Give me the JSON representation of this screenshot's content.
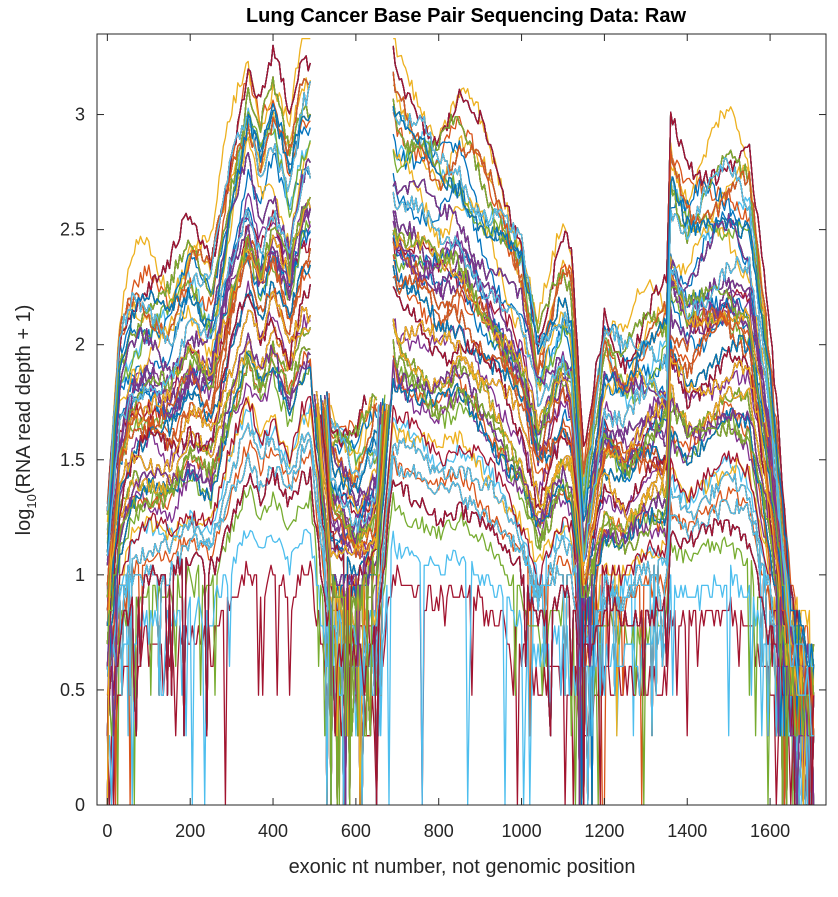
{
  "chart_data": {
    "type": "line",
    "title": "Lung Cancer Base Pair Sequencing Data: Raw",
    "xlabel": "exonic nt number, not genomic position",
    "ylabel": {
      "prefix": "log",
      "subscript": "10",
      "suffix": "(RNA read depth + 1)"
    },
    "xlim": [
      -25,
      1735
    ],
    "ylim": [
      0,
      3.35
    ],
    "x_ticks": [
      0,
      200,
      400,
      600,
      800,
      1000,
      1200,
      1400,
      1600
    ],
    "x_tick_labels": [
      "0",
      "200",
      "400",
      "600",
      "800",
      "1000",
      "1200",
      "1400",
      "1600"
    ],
    "y_ticks": [
      0,
      0.5,
      1,
      1.5,
      2,
      2.5,
      3
    ],
    "y_tick_labels": [
      "0",
      "0.5",
      "1",
      "1.5",
      "2",
      "2.5",
      "3"
    ],
    "grid": false,
    "legend": "none",
    "series_count": 300,
    "x_max": 1705,
    "gap_x": [
      490,
      690
    ],
    "colors": [
      "#0072BD",
      "#D95319",
      "#EDB120",
      "#7E2F8E",
      "#77AC30",
      "#4DBEEE",
      "#A2142F"
    ],
    "upper_envelope": {
      "x": [
        0,
        30,
        60,
        100,
        150,
        200,
        250,
        300,
        340,
        370,
        400,
        440,
        470,
        490,
        540,
        600,
        650,
        690,
        700,
        760,
        800,
        850,
        900,
        950,
        1000,
        1040,
        1070,
        1100,
        1120,
        1150,
        1200,
        1250,
        1300,
        1350,
        1360,
        1400,
        1450,
        1500,
        1550,
        1600,
        1650,
        1705
      ],
      "y": [
        1.3,
        2.1,
        2.3,
        2.35,
        2.3,
        2.5,
        2.4,
        2.95,
        3.28,
        3.05,
        3.22,
        2.95,
        3.25,
        3.28,
        1.75,
        1.62,
        1.8,
        3.28,
        3.2,
        3.1,
        3.0,
        3.05,
        2.9,
        2.75,
        2.55,
        2.1,
        2.25,
        2.42,
        2.35,
        1.45,
        2.2,
        2.05,
        2.15,
        2.2,
        2.92,
        2.75,
        2.85,
        2.92,
        2.82,
        2.0,
        0.9,
        0.6
      ]
    },
    "median_envelope": {
      "x": [
        0,
        30,
        60,
        100,
        150,
        200,
        250,
        300,
        340,
        370,
        400,
        440,
        470,
        490,
        540,
        600,
        650,
        690,
        700,
        760,
        800,
        850,
        900,
        950,
        1000,
        1040,
        1070,
        1100,
        1120,
        1150,
        1200,
        1250,
        1300,
        1350,
        1360,
        1400,
        1450,
        1500,
        1550,
        1600,
        1650,
        1705
      ],
      "y": [
        0.5,
        1.2,
        1.6,
        1.7,
        1.65,
        1.9,
        1.8,
        2.25,
        2.6,
        2.35,
        2.55,
        2.3,
        2.55,
        2.6,
        1.05,
        0.95,
        1.1,
        2.5,
        2.4,
        2.3,
        2.2,
        2.3,
        2.1,
        1.9,
        1.6,
        1.3,
        1.4,
        1.55,
        1.5,
        0.9,
        1.35,
        1.3,
        1.4,
        1.45,
        2.0,
        1.9,
        2.0,
        2.05,
        1.95,
        1.3,
        0.6,
        0.4
      ]
    }
  }
}
